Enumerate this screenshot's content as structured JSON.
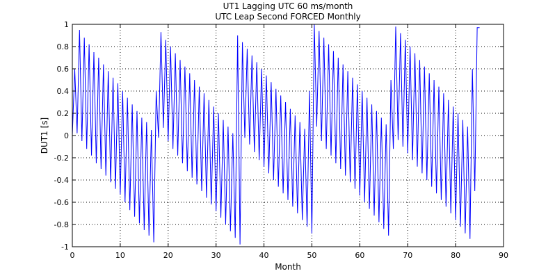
{
  "chart_data": {
    "type": "line",
    "title": [
      "UT1 Lagging UTC 60 ms/month",
      "UTC Leap Second FORCED Monthly"
    ],
    "xlabel": "Month",
    "ylabel": "DUT1 [s]",
    "xlim": [
      0,
      90
    ],
    "ylim": [
      -1,
      1
    ],
    "x_ticks": [
      0,
      10,
      20,
      30,
      40,
      50,
      60,
      70,
      80,
      90
    ],
    "y_ticks": [
      -1,
      -0.8,
      -0.6,
      -0.4,
      -0.2,
      0,
      0.2,
      0.4,
      0.6,
      0.8,
      1
    ],
    "x_tick_labels": [
      "0",
      "10",
      "20",
      "30",
      "40",
      "50",
      "60",
      "70",
      "80",
      "90"
    ],
    "y_tick_labels": [
      "-1",
      "-0.8",
      "-0.6",
      "-0.4",
      "-0.2",
      "0",
      "0.2",
      "0.4",
      "0.6",
      "0.8",
      "1"
    ],
    "grid": true,
    "color": "#0000ff",
    "series": [
      {
        "x": [
          0,
          1,
          2,
          3,
          4,
          5,
          6,
          7,
          8,
          9,
          10,
          11,
          12,
          13,
          14,
          15,
          16,
          17,
          18,
          19,
          20,
          21,
          22,
          23,
          24,
          25,
          26,
          27,
          28,
          29,
          30,
          31,
          32,
          33,
          34,
          35,
          36,
          37,
          38,
          39,
          40,
          41,
          42,
          43,
          44,
          45,
          46,
          47,
          48,
          49,
          50,
          51,
          52,
          53,
          54,
          55,
          56,
          57,
          58,
          59,
          60,
          61,
          62,
          63,
          64,
          65,
          66,
          67,
          68,
          69,
          70,
          71,
          72,
          73,
          74,
          75,
          76,
          77,
          78,
          79,
          80,
          81,
          82,
          83,
          84,
          85
        ],
        "y_min": [
          0,
          0.02,
          -0.05,
          -0.12,
          -0.18,
          -0.25,
          -0.3,
          -0.36,
          -0.42,
          -0.48,
          -0.53,
          -0.6,
          -0.67,
          -0.73,
          -0.79,
          -0.85,
          -0.9,
          -0.96,
          -0.02,
          0.07,
          -0.05,
          -0.12,
          -0.18,
          -0.25,
          -0.32,
          -0.38,
          -0.44,
          -0.5,
          -0.56,
          -0.62,
          -0.68,
          -0.74,
          -0.8,
          -0.86,
          -0.92,
          -0.98,
          -0.02,
          -0.08,
          -0.15,
          -0.22,
          -0.28,
          -0.34,
          -0.4,
          -0.46,
          -0.52,
          -0.58,
          -0.64,
          -0.7,
          -0.76,
          -0.82,
          -0.88,
          0.08,
          -0.05,
          -0.12,
          -0.18,
          -0.25,
          -0.3,
          -0.36,
          -0.42,
          -0.48,
          -0.54,
          -0.6,
          -0.66,
          -0.72,
          -0.78,
          -0.84,
          -0.9,
          -0.12,
          -0.04,
          -0.1,
          -0.16,
          -0.22,
          -0.28,
          -0.34,
          -0.4,
          -0.46,
          -0.52,
          -0.58,
          -0.64,
          -0.7,
          -0.76,
          -0.82,
          -0.88,
          -0.93,
          -0.5,
          0
        ],
        "y_max": [
          0,
          0.6,
          0.95,
          0.88,
          0.82,
          0.75,
          0.7,
          0.64,
          0.58,
          0.52,
          0.47,
          0.4,
          0.34,
          0.28,
          0.22,
          0.16,
          0.12,
          0.05,
          0.4,
          0.93,
          0.86,
          0.8,
          0.74,
          0.68,
          0.62,
          0.56,
          0.5,
          0.44,
          0.38,
          0.32,
          0.26,
          0.2,
          0.14,
          0.08,
          0.02,
          0.9,
          0.84,
          0.78,
          0.72,
          0.66,
          0.6,
          0.54,
          0.48,
          0.42,
          0.36,
          0.3,
          0.24,
          0.18,
          0.12,
          0.06,
          0.4,
          1.0,
          0.94,
          0.88,
          0.82,
          0.76,
          0.7,
          0.64,
          0.58,
          0.52,
          0.46,
          0.4,
          0.34,
          0.28,
          0.22,
          0.16,
          0.1,
          0.5,
          0.98,
          0.92,
          0.86,
          0.8,
          0.74,
          0.68,
          0.62,
          0.56,
          0.5,
          0.44,
          0.38,
          0.32,
          0.26,
          0.2,
          0.14,
          0.08,
          0.6,
          0.97
        ]
      }
    ]
  }
}
